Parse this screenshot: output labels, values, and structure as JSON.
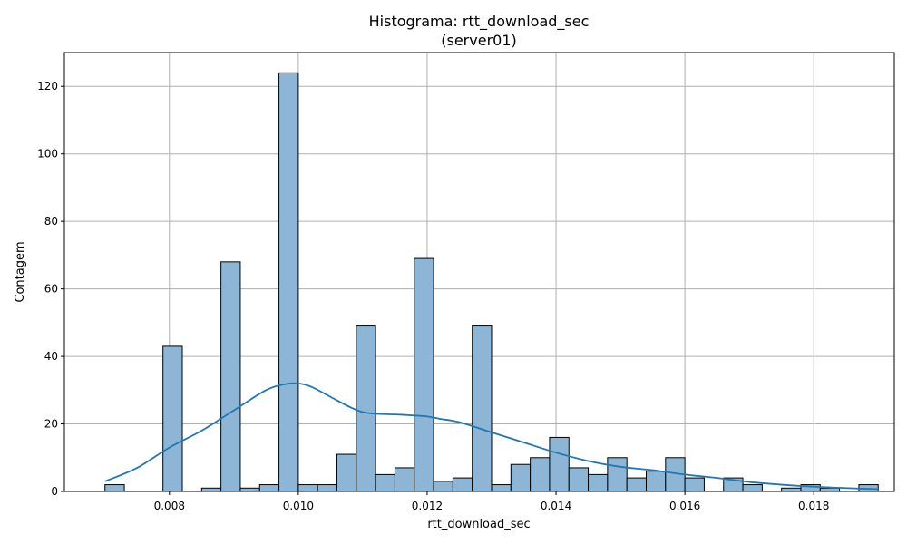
{
  "chart_data": {
    "type": "bar",
    "title": "Histograma: rtt_download_sec",
    "subtitle": "(server01)",
    "xlabel": "rtt_download_sec",
    "ylabel": "Contagem",
    "xlim": [
      0.00637,
      0.01925
    ],
    "ylim": [
      0,
      130
    ],
    "xticks": [
      {
        "value": 0.008,
        "label": "0.008"
      },
      {
        "value": 0.01,
        "label": "0.010"
      },
      {
        "value": 0.012,
        "label": "0.012"
      },
      {
        "value": 0.014,
        "label": "0.014"
      },
      {
        "value": 0.016,
        "label": "0.016"
      },
      {
        "value": 0.018,
        "label": "0.018"
      }
    ],
    "yticks": [
      {
        "value": 0,
        "label": "0"
      },
      {
        "value": 20,
        "label": "20"
      },
      {
        "value": 40,
        "label": "40"
      },
      {
        "value": 60,
        "label": "60"
      },
      {
        "value": 80,
        "label": "80"
      },
      {
        "value": 100,
        "label": "100"
      },
      {
        "value": 120,
        "label": "120"
      }
    ],
    "grid": true,
    "bin_start": 0.007,
    "bin_width": 0.0003,
    "counts": [
      2,
      0,
      0,
      43,
      0,
      1,
      68,
      1,
      2,
      124,
      2,
      2,
      11,
      49,
      5,
      7,
      69,
      3,
      4,
      49,
      2,
      8,
      10,
      16,
      7,
      5,
      10,
      4,
      6,
      10,
      4,
      0,
      4,
      2,
      0,
      1,
      2,
      1,
      0,
      2
    ],
    "kde": {
      "x": [
        0.007,
        0.0075,
        0.008,
        0.0085,
        0.009,
        0.0095,
        0.0098,
        0.01,
        0.0102,
        0.0105,
        0.0108,
        0.011,
        0.0112,
        0.0115,
        0.0118,
        0.012,
        0.0122,
        0.0125,
        0.013,
        0.0135,
        0.014,
        0.0145,
        0.015,
        0.0155,
        0.016,
        0.0165,
        0.017,
        0.0175,
        0.018,
        0.0185,
        0.019
      ],
      "y": [
        3,
        7,
        13,
        18,
        24,
        30,
        31.8,
        32,
        31,
        28,
        25,
        23.5,
        23,
        22.8,
        22.5,
        22.2,
        21.5,
        20.5,
        17.5,
        14.5,
        11.5,
        9,
        7.3,
        6.3,
        5,
        4,
        2.8,
        2,
        1.4,
        1,
        0.7
      ]
    },
    "colors": {
      "bar_fill": "#8db6d6",
      "bar_edge": "#000000",
      "kde_line": "#1f77b4",
      "grid": "#b0b0b0"
    }
  }
}
